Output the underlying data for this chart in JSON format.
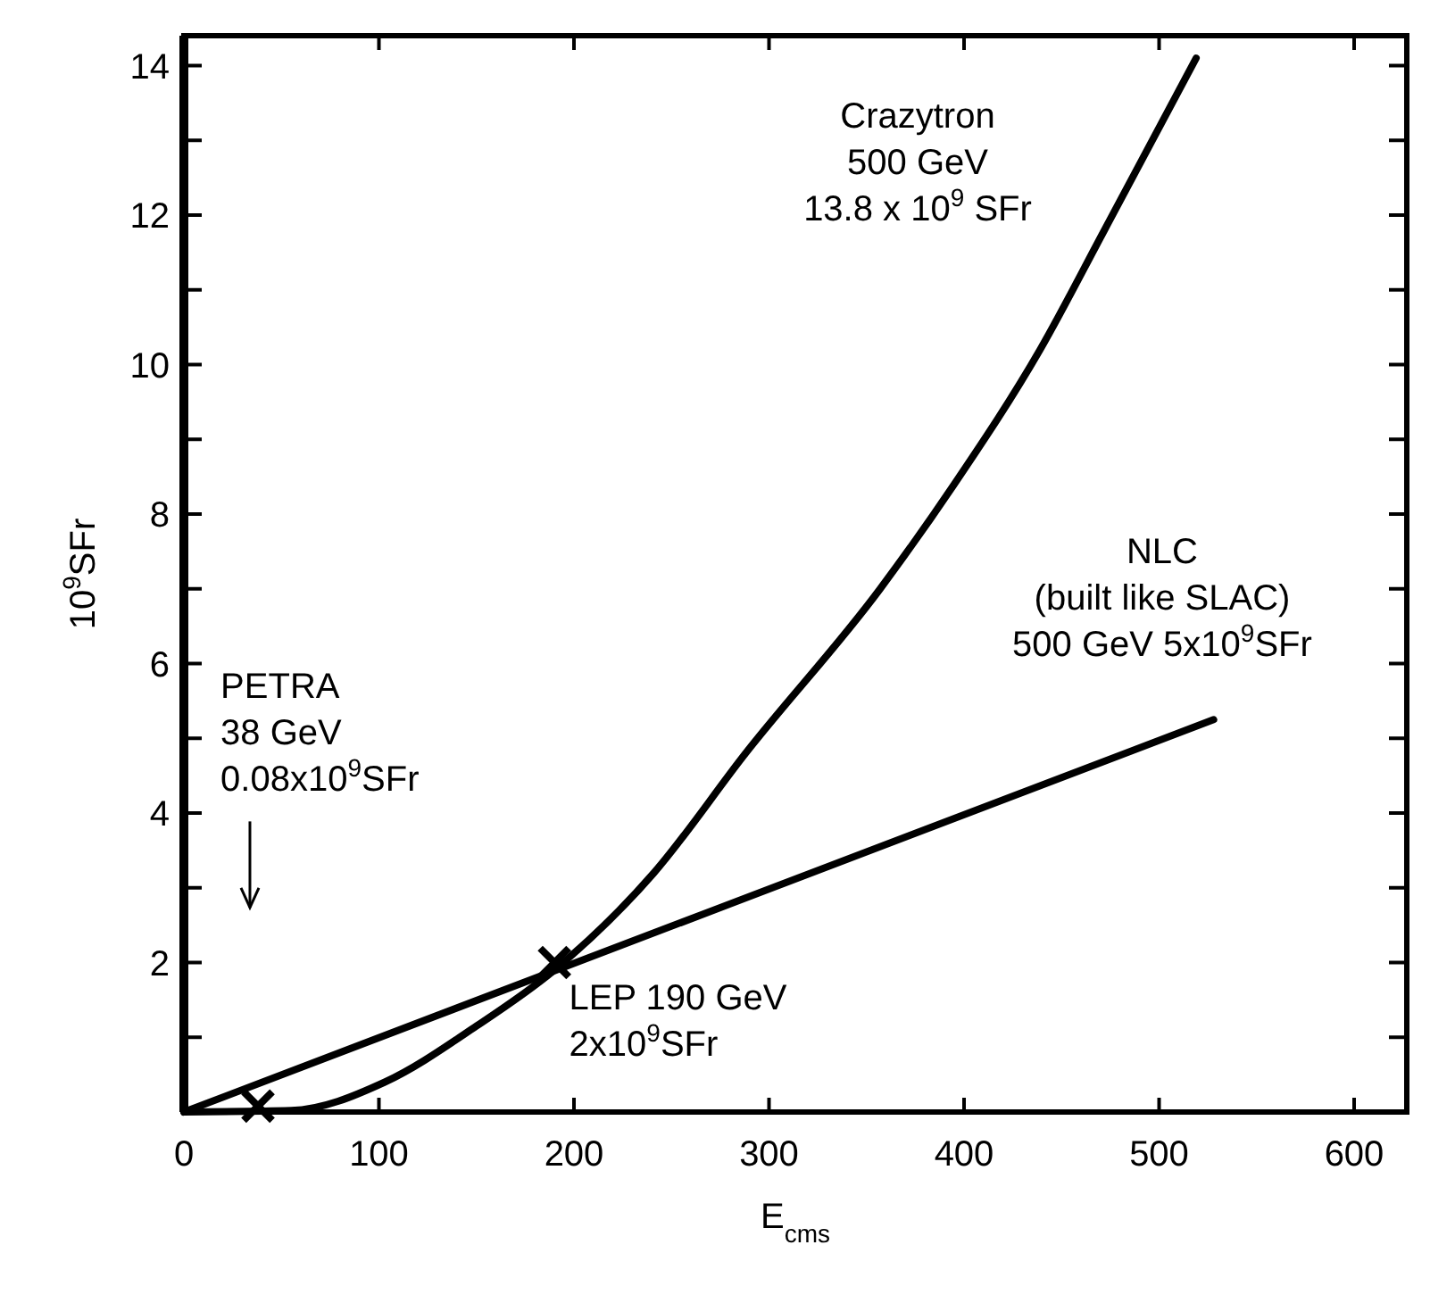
{
  "chart_data": {
    "type": "line",
    "xlabel": "E$_{cms}$",
    "ylabel": "10$^{9}$SFr",
    "xlim": [
      0,
      627
    ],
    "xticks": [
      0,
      100,
      200,
      300,
      400,
      500,
      600
    ],
    "ylim": [
      0,
      14.4
    ],
    "yticks": [
      {
        "value": 1,
        "label": null
      },
      2,
      {
        "value": 3,
        "label": null
      },
      4,
      {
        "value": 5,
        "label": null
      },
      6,
      {
        "value": 7,
        "label": null
      },
      8,
      {
        "value": 9,
        "label": null
      },
      10,
      {
        "value": 11,
        "label": null
      },
      12,
      {
        "value": 13,
        "label": null
      },
      14
    ],
    "grid": false,
    "series": [
      {
        "color": "#000000",
        "x": [
          0,
          55,
          103,
          150,
          190,
          241,
          288,
          357,
          395,
          439,
          472,
          519
        ],
        "values": [
          0,
          0.02,
          0.4,
          1.15,
          1.9,
          3.2,
          4.8,
          7.0,
          8.4,
          10.2,
          11.8,
          14.1
        ]
      },
      {
        "color": "#000000",
        "x": [
          0,
          528
        ],
        "values": [
          0,
          5.25
        ]
      },
      {
        "type": "scatter",
        "color": "#000000",
        "marker": "cross",
        "x": [
          38,
          190
        ],
        "values": [
          0.08,
          2
        ]
      }
    ],
    "annotations": [
      "Crazytron\n500 GeV\n13.8 x 10$^{9}$ SFr",
      "NLC\n(built like SLAC)\n500 GeV 5x10$^{9}$SFr",
      "LEP 190 GeV\n2x10$^{9}$SFr",
      "PETRA\n38 GeV\n0.08x10$^{9}$SFr"
    ]
  }
}
